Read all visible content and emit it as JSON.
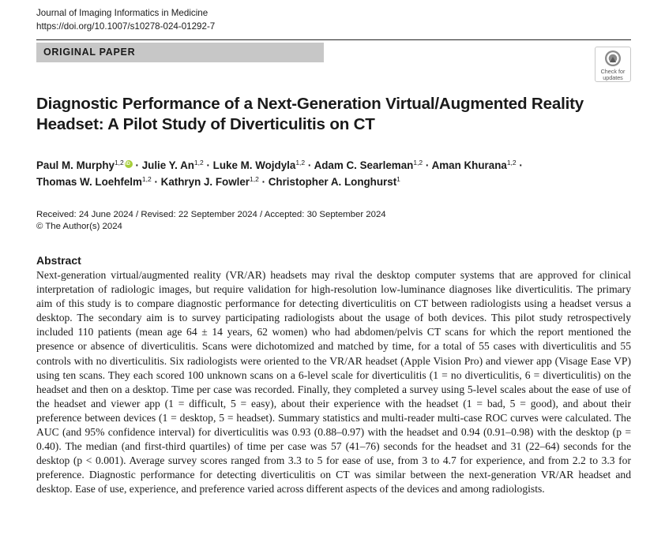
{
  "header": {
    "journal": "Journal of Imaging Informatics in Medicine",
    "doi": "https://doi.org/10.1007/s10278-024-01292-7"
  },
  "banner": "ORIGINAL PAPER",
  "badge": {
    "text": "Check for\nupdates",
    "icon": "check-for-updates-icon"
  },
  "title": "Diagnostic Performance of a Next-Generation Virtual/Augmented Reality Headset: A Pilot Study of Diverticulitis on CT",
  "authors": [
    {
      "name": "Paul M. Murphy",
      "aff": "1,2",
      "orcid": true
    },
    {
      "name": "Julie Y. An",
      "aff": "1,2"
    },
    {
      "name": "Luke M. Wojdyla",
      "aff": "1,2"
    },
    {
      "name": "Adam C. Searleman",
      "aff": "1,2"
    },
    {
      "name": "Aman Khurana",
      "aff": "1,2"
    },
    {
      "name": "Thomas W. Loehfelm",
      "aff": "1,2"
    },
    {
      "name": "Kathryn J. Fowler",
      "aff": "1,2"
    },
    {
      "name": "Christopher A. Longhurst",
      "aff": "1"
    }
  ],
  "dates": "Received: 24 June 2024 / Revised: 22 September 2024 / Accepted: 30 September 2024",
  "copyright": "© The Author(s) 2024",
  "abstract": {
    "heading": "Abstract",
    "text": "Next-generation virtual/augmented reality (VR/AR) headsets may rival the desktop computer systems that are approved for clinical interpretation of radiologic images, but require validation for high-resolution low-luminance diagnoses like diverticulitis. The primary aim of this study is to compare diagnostic performance for detecting diverticulitis on CT between radiologists using a headset versus a desktop. The secondary aim is to survey participating radiologists about the usage of both devices. This pilot study retrospectively included 110 patients (mean age 64 ± 14 years, 62 women) who had abdomen/pelvis CT scans for which the report mentioned the presence or absence of diverticulitis. Scans were dichotomized and matched by time, for a total of 55 cases with diverticulitis and 55 controls with no diverticulitis. Six radiologists were oriented to the VR/AR headset (Apple Vision Pro) and viewer app (Visage Ease VP) using ten scans. They each scored 100 unknown scans on a 6-level scale for diverticulitis (1 = no diverticulitis, 6 = diverticulitis) on the headset and then on a desktop. Time per case was recorded. Finally, they completed a survey using 5-level scales about the ease of use of the headset and viewer app (1 = difficult, 5 = easy), about their experience with the headset (1 = bad, 5 = good), and about their preference between devices (1 = desktop, 5 = headset). Summary statistics and multi-reader multi-case ROC curves were calculated. The AUC (and 95% confidence interval) for diverticulitis was 0.93 (0.88–0.97) with the headset and 0.94 (0.91–0.98) with the desktop (p = 0.40). The median (and first-third quartiles) of time per case was 57 (41–76) seconds for the headset and 31 (22–64) seconds for the desktop (p < 0.001). Average survey scores ranged from 3.3 to 5 for ease of use, from 3 to 4.7 for experience, and from 2.2 to 3.3 for preference. Diagnostic performance for detecting diverticulitis on CT was similar between the next-generation VR/AR headset and desktop. Ease of use, experience, and preference varied across different aspects of the devices and among radiologists."
  }
}
